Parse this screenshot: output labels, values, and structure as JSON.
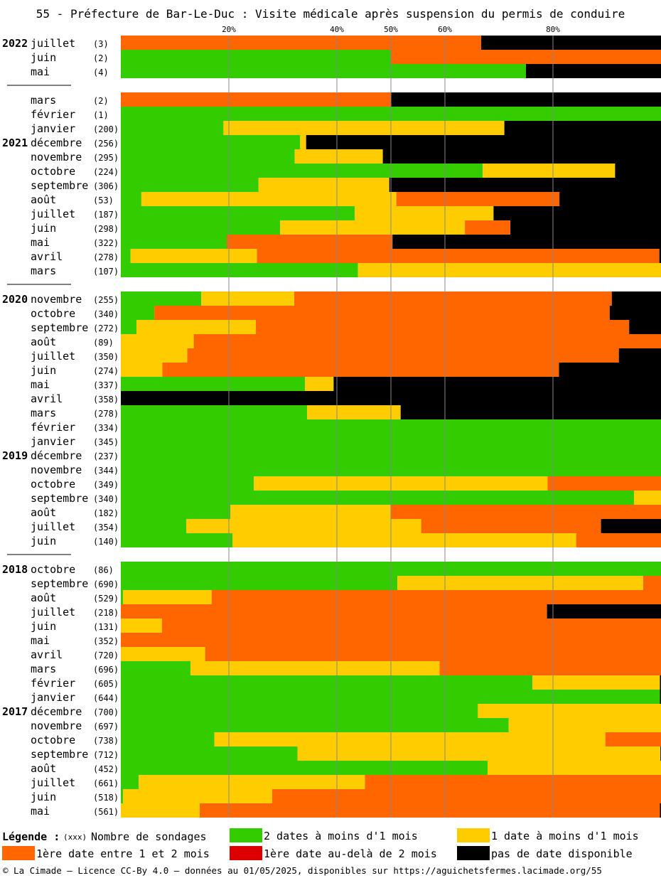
{
  "chart_data": {
    "type": "bar",
    "title": "55 - Préfecture de Bar-Le-Duc : Visite médicale après suspension du permis de conduire",
    "x_ticks": [
      20,
      40,
      50,
      60,
      80
    ],
    "x_tick_labels": [
      "20%",
      "40%",
      "50%",
      "60%",
      "80%"
    ],
    "xlim": [
      0,
      100
    ],
    "series": [
      {
        "name": "2 dates à moins d'1 mois",
        "color": "#33cc00"
      },
      {
        "name": "1 date à moins d'1 mois",
        "color": "#ffcc00"
      },
      {
        "name": "1ère date entre 1 et 2 mois",
        "color": "#ff6600"
      },
      {
        "name": "1ère date au-delà de 2 mois",
        "color": "#dd0000"
      },
      {
        "name": "pas de date disponible",
        "color": "#000000"
      }
    ],
    "rows": [
      {
        "year": "2022",
        "month": "juillet",
        "count": "(3)",
        "values": [
          0,
          0,
          66.7,
          0,
          33.3
        ]
      },
      {
        "year": "",
        "month": "juin",
        "count": "(2)",
        "values": [
          50,
          0,
          50,
          0,
          0
        ]
      },
      {
        "year": "",
        "month": "mai",
        "count": "(4)",
        "values": [
          75,
          0,
          0,
          0,
          25
        ]
      },
      {
        "separator": true
      },
      {
        "year": "",
        "month": "mars",
        "count": "(2)",
        "values": [
          0,
          0,
          50,
          0,
          50
        ]
      },
      {
        "year": "",
        "month": "février",
        "count": "(1)",
        "values": [
          100,
          0,
          0,
          0,
          0
        ]
      },
      {
        "year": "",
        "month": "janvier",
        "count": "(200)",
        "values": [
          19,
          52,
          0,
          0,
          29
        ]
      },
      {
        "year": "2021",
        "month": "décembre",
        "count": "(256)",
        "values": [
          33.2,
          1.1,
          0,
          0,
          65.7
        ]
      },
      {
        "year": "",
        "month": "novembre",
        "count": "(295)",
        "values": [
          32.2,
          16.3,
          0,
          0,
          51.5
        ]
      },
      {
        "year": "",
        "month": "octobre",
        "count": "(224)",
        "values": [
          67,
          24.5,
          0,
          0,
          8.5
        ]
      },
      {
        "year": "",
        "month": "septembre",
        "count": "(306)",
        "values": [
          25.5,
          24.2,
          0,
          0,
          50.3
        ]
      },
      {
        "year": "",
        "month": "août",
        "count": "(53)",
        "values": [
          3.8,
          47.2,
          30.2,
          0,
          18.8
        ]
      },
      {
        "year": "",
        "month": "juillet",
        "count": "(187)",
        "values": [
          43.3,
          25.7,
          0,
          0,
          31
        ]
      },
      {
        "year": "",
        "month": "juin",
        "count": "(298)",
        "values": [
          29.5,
          34.2,
          8.4,
          0,
          27.9
        ]
      },
      {
        "year": "",
        "month": "mai",
        "count": "(322)",
        "values": [
          19.6,
          0,
          30.7,
          0,
          49.7
        ]
      },
      {
        "year": "",
        "month": "avril",
        "count": "(278)",
        "values": [
          1.8,
          23.4,
          74.5,
          0,
          0.3
        ]
      },
      {
        "year": "",
        "month": "mars",
        "count": "(107)",
        "values": [
          43.9,
          56.1,
          0,
          0,
          0
        ]
      },
      {
        "separator": true
      },
      {
        "year": "2020",
        "month": "novembre",
        "count": "(255)",
        "values": [
          14.9,
          17.2,
          58.8,
          0,
          9.1
        ]
      },
      {
        "year": "",
        "month": "octobre",
        "count": "(340)",
        "values": [
          6.2,
          0,
          84.3,
          0,
          9.5
        ]
      },
      {
        "year": "",
        "month": "septembre",
        "count": "(272)",
        "values": [
          2.9,
          22.1,
          69.1,
          0,
          5.9
        ]
      },
      {
        "year": "",
        "month": "août",
        "count": "(89)",
        "values": [
          0,
          13.5,
          86.5,
          0,
          0
        ]
      },
      {
        "year": "",
        "month": "juillet",
        "count": "(350)",
        "values": [
          0,
          12.3,
          79.9,
          0,
          7.8
        ]
      },
      {
        "year": "",
        "month": "juin",
        "count": "(274)",
        "values": [
          0,
          7.7,
          73.4,
          0,
          18.9
        ]
      },
      {
        "year": "",
        "month": "mai",
        "count": "(337)",
        "values": [
          34.1,
          5.3,
          0,
          0,
          60.6
        ]
      },
      {
        "year": "",
        "month": "avril",
        "count": "(358)",
        "values": [
          0,
          0,
          0,
          0,
          100
        ]
      },
      {
        "year": "",
        "month": "mars",
        "count": "(278)",
        "values": [
          34.5,
          17.3,
          0,
          0,
          48.2
        ]
      },
      {
        "year": "",
        "month": "février",
        "count": "(334)",
        "values": [
          100,
          0,
          0,
          0,
          0
        ]
      },
      {
        "year": "",
        "month": "janvier",
        "count": "(345)",
        "values": [
          100,
          0,
          0,
          0,
          0
        ]
      },
      {
        "year": "2019",
        "month": "décembre",
        "count": "(237)",
        "values": [
          100,
          0,
          0,
          0,
          0
        ]
      },
      {
        "year": "",
        "month": "novembre",
        "count": "(344)",
        "values": [
          100,
          0,
          0,
          0,
          0
        ]
      },
      {
        "year": "",
        "month": "octobre",
        "count": "(349)",
        "values": [
          24.6,
          54.4,
          21,
          0,
          0
        ]
      },
      {
        "year": "",
        "month": "septembre",
        "count": "(340)",
        "values": [
          95,
          5,
          0,
          0,
          0
        ]
      },
      {
        "year": "",
        "month": "août",
        "count": "(182)",
        "values": [
          20.3,
          29.7,
          50,
          0,
          0
        ]
      },
      {
        "year": "",
        "month": "juillet",
        "count": "(354)",
        "values": [
          12.1,
          43.5,
          33.3,
          0,
          11.1
        ]
      },
      {
        "year": "",
        "month": "juin",
        "count": "(140)",
        "values": [
          20.7,
          63.6,
          15.7,
          0,
          0
        ]
      },
      {
        "separator": true
      },
      {
        "year": "2018",
        "month": "octobre",
        "count": "(86)",
        "values": [
          100,
          0,
          0,
          0,
          0
        ]
      },
      {
        "year": "",
        "month": "septembre",
        "count": "(690)",
        "values": [
          51.2,
          45.5,
          3.3,
          0,
          0
        ]
      },
      {
        "year": "",
        "month": "août",
        "count": "(529)",
        "values": [
          0.4,
          16.4,
          83.2,
          0,
          0
        ]
      },
      {
        "year": "",
        "month": "juillet",
        "count": "(218)",
        "values": [
          0,
          0,
          78.9,
          0,
          21.1
        ]
      },
      {
        "year": "",
        "month": "juin",
        "count": "(131)",
        "values": [
          0,
          7.6,
          92.4,
          0,
          0
        ]
      },
      {
        "year": "",
        "month": "mai",
        "count": "(352)",
        "values": [
          0,
          0,
          100,
          0,
          0
        ]
      },
      {
        "year": "",
        "month": "avril",
        "count": "(720)",
        "values": [
          0,
          15.6,
          84.4,
          0,
          0
        ]
      },
      {
        "year": "",
        "month": "mars",
        "count": "(696)",
        "values": [
          12.9,
          46.1,
          41,
          0,
          0
        ]
      },
      {
        "year": "",
        "month": "février",
        "count": "(605)",
        "values": [
          76.2,
          23.6,
          0,
          0,
          0.2
        ]
      },
      {
        "year": "",
        "month": "janvier",
        "count": "(644)",
        "values": [
          99.8,
          0,
          0,
          0,
          0.2
        ]
      },
      {
        "year": "2017",
        "month": "décembre",
        "count": "(700)",
        "values": [
          66.1,
          33.9,
          0,
          0,
          0
        ]
      },
      {
        "year": "",
        "month": "novembre",
        "count": "(697)",
        "values": [
          71.8,
          28.2,
          0,
          0,
          0
        ]
      },
      {
        "year": "",
        "month": "octobre",
        "count": "(738)",
        "values": [
          17.3,
          72.4,
          10.3,
          0,
          0
        ]
      },
      {
        "year": "",
        "month": "septembre",
        "count": "(712)",
        "values": [
          32.7,
          67.2,
          0,
          0,
          0.1
        ]
      },
      {
        "year": "",
        "month": "août",
        "count": "(452)",
        "values": [
          67.9,
          32.1,
          0,
          0,
          0
        ]
      },
      {
        "year": "",
        "month": "juillet",
        "count": "(661)",
        "values": [
          3.3,
          41.9,
          54.8,
          0,
          0
        ]
      },
      {
        "year": "",
        "month": "juin",
        "count": "(518)",
        "values": [
          0.4,
          27.6,
          72,
          0,
          0
        ]
      },
      {
        "year": "",
        "month": "mai",
        "count": "(561)",
        "values": [
          0,
          14.6,
          85.2,
          0,
          0.2
        ]
      }
    ]
  },
  "legend": {
    "title": "Légende :",
    "count_key": "(xxx)",
    "count_label": "Nombre de sondages",
    "items": [
      {
        "label": "2 dates à moins d'1 mois",
        "color": "#33cc00",
        "name": "legend-item-2-dates"
      },
      {
        "label": "1 date à moins d'1 mois",
        "color": "#ffcc00",
        "name": "legend-item-1-date"
      },
      {
        "label": "1ère date entre 1 et 2 mois",
        "color": "#ff6600",
        "name": "legend-item-1-2-mois"
      },
      {
        "label": "1ère date au-delà de 2 mois",
        "color": "#dd0000",
        "name": "legend-item-au-dela-2-mois"
      },
      {
        "label": "pas de date disponible",
        "color": "#000000",
        "name": "legend-item-pas-de-date"
      }
    ]
  },
  "footer": "© La Cimade – Licence CC-By 4.0 – données au 01/05/2025, disponibles sur https://aguichetsfermes.lacimade.org/55"
}
